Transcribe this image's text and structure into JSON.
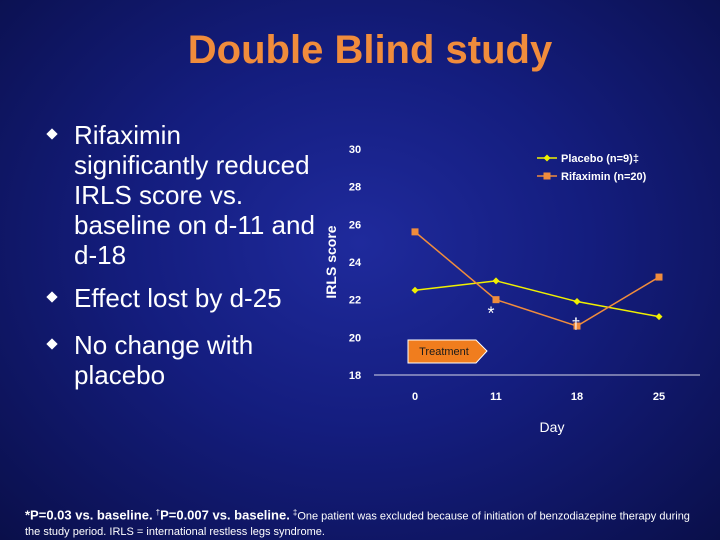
{
  "slide": {
    "title": "Double Blind study",
    "bullets": [
      "Rifaximin significantly reduced IRLS score vs. baseline on d-11 and d-18",
      "Effect lost by d-25",
      "No change with placebo"
    ]
  },
  "footnote": {
    "sig1": "*P=0.03 vs. baseline.",
    "sig2": "P=0.007 vs. baseline.",
    "dagger": "†",
    "ddagger": "‡",
    "rest": "One patient was excluded because of initiation of benzodiazepine therapy during the study period. IRLS = international restless legs syndrome."
  },
  "chart_data": {
    "type": "line",
    "title": "",
    "xlabel": "Day",
    "ylabel": "IRLS score",
    "categories": [
      "0",
      "11",
      "18",
      "25"
    ],
    "ylim": [
      18,
      30
    ],
    "yticks": [
      18,
      20,
      22,
      24,
      26,
      28,
      30
    ],
    "series": [
      {
        "name": "Placebo (n=9)‡",
        "color": "#f0f000",
        "marker": "diamond",
        "values": [
          22.5,
          23.0,
          21.9,
          21.1
        ]
      },
      {
        "name": "Rifaximin (n=20)",
        "color": "#f08c3c",
        "marker": "square",
        "values": [
          25.6,
          22.0,
          20.6,
          23.2
        ]
      }
    ],
    "annotations": [
      {
        "text": "*",
        "category": "11",
        "series": "Rifaximin (n=20)"
      },
      {
        "text": "†",
        "category": "18",
        "series": "Rifaximin (n=20)"
      }
    ],
    "callout": "Treatment",
    "callout_color": "#f07d1e",
    "legend_position": "top-right"
  }
}
